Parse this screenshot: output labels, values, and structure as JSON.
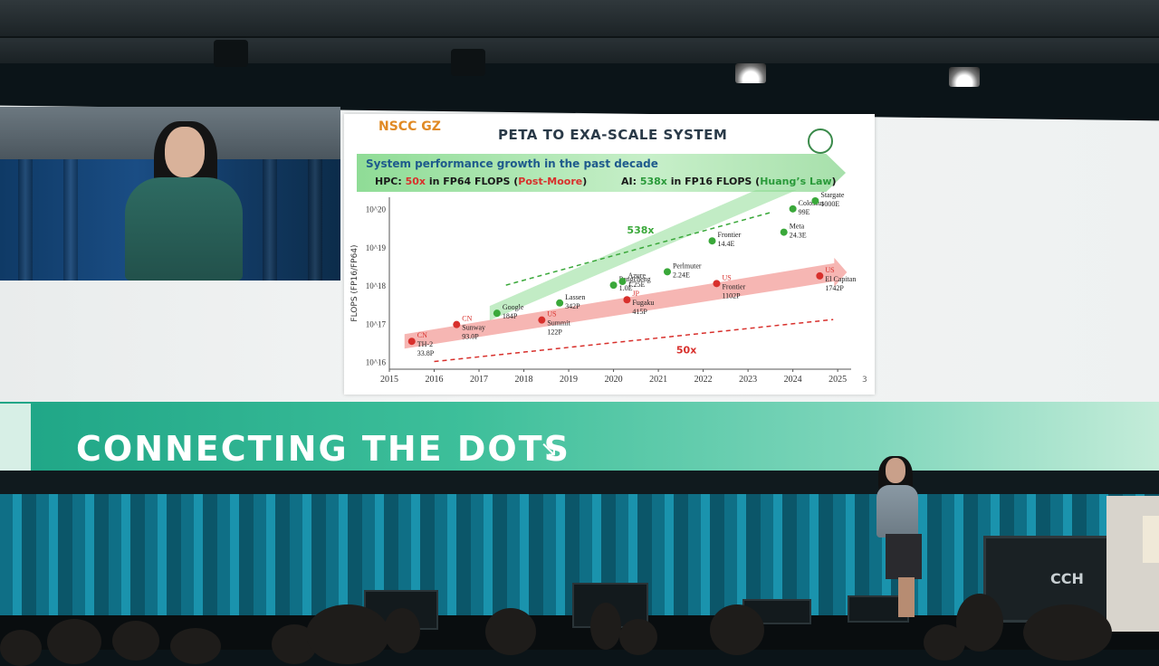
{
  "slide": {
    "logo_text": "NSCC GZ",
    "title": "PETA TO EXA-SCALE SYSTEM",
    "banner_title": "System performance growth in the past decade",
    "hpc_prefix": "HPC: ",
    "hpc_mult": "50x",
    "hpc_mid": " in FP64 FLOPS (",
    "hpc_law": "Post-Moore",
    "hpc_suffix": ")",
    "ai_prefix": "AI: ",
    "ai_mult": "538x",
    "ai_mid": " in FP16 FLOPS (",
    "ai_law": "Huang’s Law",
    "ai_suffix": ")",
    "page_number": "3"
  },
  "chart_data": {
    "type": "scatter",
    "ylabel": "FLOPS (FP16/FP64)",
    "y_scale": "log",
    "x_ticks": [
      "2015",
      "2016",
      "2017",
      "2018",
      "2019",
      "2020",
      "2021",
      "2022",
      "2023",
      "2024",
      "2025"
    ],
    "y_ticks": [
      "10^16",
      "10^17",
      "10^18",
      "10^19",
      "10^20"
    ],
    "y_exponents": [
      16,
      17,
      18,
      19,
      20
    ],
    "xlim": [
      2015,
      2025.3
    ],
    "ylim_exp": [
      15.8,
      20.3
    ],
    "hpc_growth_label": "50x",
    "ai_growth_label": "538x",
    "series": [
      {
        "name": "HPC (FP64)",
        "color": "#d8302c",
        "points": [
          {
            "x": 2015.5,
            "y": 3.38e+16,
            "lines": [
              "CN",
              "TH-2",
              "33.8P"
            ]
          },
          {
            "x": 2016.5,
            "y": 9.3e+16,
            "lines": [
              "CN",
              "Sunway",
              "93.0P"
            ]
          },
          {
            "x": 2018.4,
            "y": 1.22e+17,
            "lines": [
              "US",
              "Summit",
              "122P"
            ]
          },
          {
            "x": 2020.3,
            "y": 4.15e+17,
            "lines": [
              "JP",
              "Fugaku",
              "415P"
            ]
          },
          {
            "x": 2022.3,
            "y": 1.102e+18,
            "lines": [
              "US",
              "Frontier",
              "1102P"
            ]
          },
          {
            "x": 2024.6,
            "y": 1.742e+18,
            "lines": [
              "US",
              "El Capitan",
              "1742P"
            ]
          }
        ]
      },
      {
        "name": "AI (FP16)",
        "color": "#3aa83a",
        "points": [
          {
            "x": 2017.4,
            "y": 1.84e+17,
            "lines": [
              "Google",
              "184P"
            ]
          },
          {
            "x": 2018.8,
            "y": 3.42e+17,
            "lines": [
              "Lassen",
              "342P"
            ]
          },
          {
            "x": 2020.0,
            "y": 1e+18,
            "lines": [
              "Pengcheng",
              "1.0E"
            ]
          },
          {
            "x": 2020.2,
            "y": 1.25e+18,
            "lines": [
              "Azure",
              "1.25E"
            ]
          },
          {
            "x": 2021.2,
            "y": 2.24e+18,
            "lines": [
              "Perlmuter",
              "2.24E"
            ]
          },
          {
            "x": 2022.2,
            "y": 1.44e+19,
            "lines": [
              "Frontier",
              "14.4E"
            ]
          },
          {
            "x": 2023.8,
            "y": 2.43e+19,
            "lines": [
              "Meta",
              "24.3E"
            ]
          },
          {
            "x": 2024.0,
            "y": 9.9e+19,
            "lines": [
              "Colossus",
              "99E"
            ]
          },
          {
            "x": 2024.5,
            "y": 1e+21,
            "lines": [
              "Stargate",
              "1000E"
            ]
          }
        ]
      }
    ]
  },
  "banner": {
    "text": "CONNECTING THE DOTS",
    "arrow": "↘"
  },
  "stage": {
    "monitor_brand": "CCH"
  }
}
